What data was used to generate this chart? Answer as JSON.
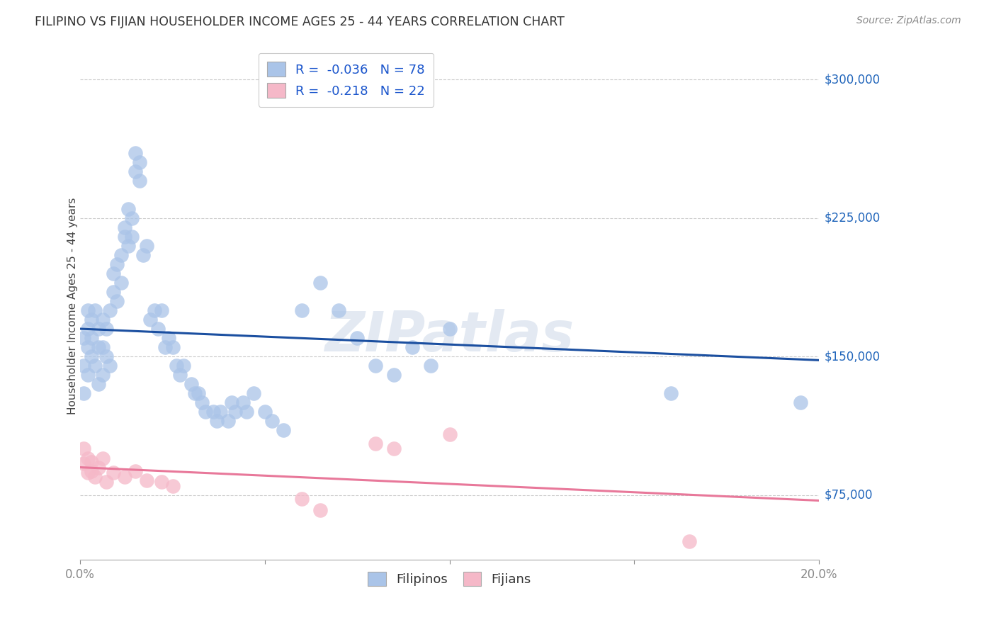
{
  "title": "FILIPINO VS FIJIAN HOUSEHOLDER INCOME AGES 25 - 44 YEARS CORRELATION CHART",
  "source": "Source: ZipAtlas.com",
  "ylabel": "Householder Income Ages 25 - 44 years",
  "xlim": [
    0.0,
    0.2
  ],
  "ylim": [
    40000,
    315000
  ],
  "yticks": [
    75000,
    150000,
    225000,
    300000
  ],
  "ytick_labels": [
    "$75,000",
    "$150,000",
    "$225,000",
    "$300,000"
  ],
  "xticks": [
    0.0,
    0.05,
    0.1,
    0.15,
    0.2
  ],
  "xtick_labels": [
    "0.0%",
    "",
    "",
    "",
    "20.0%"
  ],
  "filipino_R": -0.036,
  "filipino_N": 78,
  "fijian_R": -0.218,
  "fijian_N": 22,
  "filipino_color": "#aac4e8",
  "fijian_color": "#f5b8c8",
  "filipino_line_color": "#1b4fa0",
  "fijian_line_color": "#e8789a",
  "watermark": "ZIPatlas",
  "filipino_line_x0": 0.0,
  "filipino_line_y0": 165000,
  "filipino_line_x1": 0.2,
  "filipino_line_y1": 148000,
  "fijian_line_x0": 0.0,
  "fijian_line_y0": 90000,
  "fijian_line_x1": 0.2,
  "fijian_line_y1": 72000,
  "filipino_scatter_x": [
    0.001,
    0.001,
    0.001,
    0.002,
    0.002,
    0.002,
    0.002,
    0.003,
    0.003,
    0.003,
    0.004,
    0.004,
    0.005,
    0.005,
    0.005,
    0.006,
    0.006,
    0.006,
    0.007,
    0.007,
    0.008,
    0.008,
    0.009,
    0.009,
    0.01,
    0.01,
    0.011,
    0.011,
    0.012,
    0.012,
    0.013,
    0.013,
    0.014,
    0.014,
    0.015,
    0.015,
    0.016,
    0.016,
    0.017,
    0.018,
    0.019,
    0.02,
    0.021,
    0.022,
    0.023,
    0.024,
    0.025,
    0.026,
    0.027,
    0.028,
    0.03,
    0.031,
    0.032,
    0.033,
    0.034,
    0.036,
    0.037,
    0.038,
    0.04,
    0.041,
    0.042,
    0.044,
    0.045,
    0.047,
    0.05,
    0.052,
    0.055,
    0.06,
    0.065,
    0.07,
    0.075,
    0.08,
    0.085,
    0.09,
    0.095,
    0.1,
    0.16,
    0.195
  ],
  "filipino_scatter_y": [
    130000,
    145000,
    160000,
    140000,
    155000,
    165000,
    175000,
    150000,
    160000,
    170000,
    145000,
    175000,
    135000,
    155000,
    165000,
    140000,
    155000,
    170000,
    150000,
    165000,
    145000,
    175000,
    185000,
    195000,
    180000,
    200000,
    190000,
    205000,
    215000,
    220000,
    210000,
    230000,
    215000,
    225000,
    250000,
    260000,
    255000,
    245000,
    205000,
    210000,
    170000,
    175000,
    165000,
    175000,
    155000,
    160000,
    155000,
    145000,
    140000,
    145000,
    135000,
    130000,
    130000,
    125000,
    120000,
    120000,
    115000,
    120000,
    115000,
    125000,
    120000,
    125000,
    120000,
    130000,
    120000,
    115000,
    110000,
    175000,
    190000,
    175000,
    160000,
    145000,
    140000,
    155000,
    145000,
    165000,
    130000,
    125000
  ],
  "fijian_scatter_x": [
    0.001,
    0.001,
    0.002,
    0.002,
    0.003,
    0.003,
    0.004,
    0.005,
    0.006,
    0.007,
    0.009,
    0.012,
    0.015,
    0.018,
    0.022,
    0.025,
    0.06,
    0.065,
    0.08,
    0.085,
    0.1,
    0.165
  ],
  "fijian_scatter_y": [
    92000,
    100000,
    87000,
    95000,
    88000,
    93000,
    85000,
    90000,
    95000,
    82000,
    87000,
    85000,
    88000,
    83000,
    82000,
    80000,
    73000,
    67000,
    103000,
    100000,
    108000,
    50000
  ]
}
